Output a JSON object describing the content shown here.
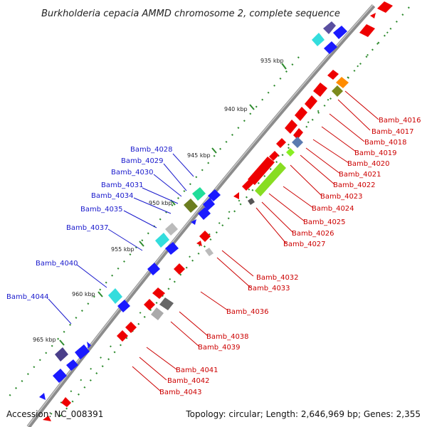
{
  "title": "Burkholderia cepacia AMMD chromosome 2, complete sequence",
  "footer": {
    "accession": "Accession: NC_008391",
    "summary": "Topology: circular; Length: 2,646,969 bp; Genes: 2,355"
  },
  "colors": {
    "backbone": "#8c8c8c",
    "tick": "#2e8b2e",
    "forward_gene": "#1a1aff",
    "reverse_gene": "#ee0000",
    "forward_label": "#1a1acc",
    "reverse_label": "#cc0000"
  },
  "kbp_markers": [
    "935 kbp",
    "940 kbp",
    "945 kbp",
    "950 kbp",
    "955 kbp",
    "960 kbp",
    "965 kbp"
  ],
  "left_labels": [
    "Bamb_4028",
    "Bamb_4029",
    "Bamb_4030",
    "Bamb_4031",
    "Bamb_4034",
    "Bamb_4035",
    "Bamb_4037",
    "Bamb_4040",
    "Bamb_4044"
  ],
  "right_labels": [
    "Bamb_4016",
    "Bamb_4017",
    "Bamb_4018",
    "Bamb_4019",
    "Bamb_4020",
    "Bamb_4021",
    "Bamb_4022",
    "Bamb_4023",
    "Bamb_4024",
    "Bamb_4025",
    "Bamb_4026",
    "Bamb_4027",
    "Bamb_4032",
    "Bamb_4033",
    "Bamb_4036",
    "Bamb_4038",
    "Bamb_4039",
    "Bamb_4041",
    "Bamb_4042",
    "Bamb_4043"
  ]
}
